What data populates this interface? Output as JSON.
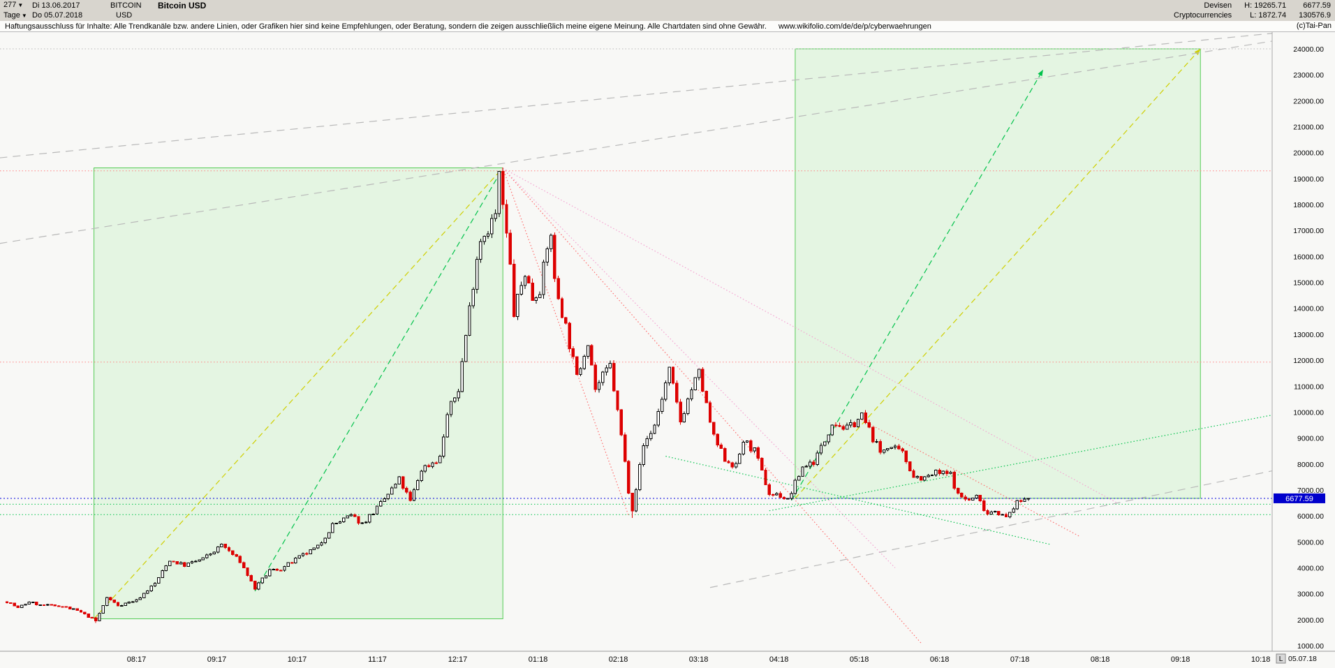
{
  "header": {
    "bars_count": "277",
    "period": "Tage",
    "date_from": "Di 13.06.2017",
    "date_to": "Do 05.07.2018",
    "symbol": "BITCOIN",
    "currency": "USD",
    "title": "Bitcoin USD",
    "category_line1": "Devisen",
    "category_line2": "Cryptocurrencies",
    "high_label": "H: 19265.71",
    "low_label": "L: 1872.74",
    "last_price": "6677.59",
    "volume": "130576.9",
    "copyright": "(c)Tai-Pan"
  },
  "disclaimer": {
    "text": "Haftungsausschluss für Inhalte: Alle Trendkanäle bzw. andere Linien, oder Grafiken hier sind keine Empfehlungen, oder Beratung, sondern die zeigen ausschließlich meine eigene Meinung. Alle Chartdaten sind ohne Gewähr.",
    "link": "www.wikifolio.com/de/de/p/cyberwaehrungen"
  },
  "footer": {
    "last_marker": "L",
    "last_date": "05.07.18"
  },
  "colors": {
    "up": "#000000",
    "up_fill": "#ffffff",
    "down": "#dd0000",
    "box_fill": "rgba(150,235,150,0.20)",
    "box_border": "#55cc55",
    "yellow": "#cfcf00",
    "green": "#00c24a",
    "gray": "#b8b8b8",
    "magenta": "#f4a0d0",
    "fan_red": "#ff6a6a",
    "red_line": "#ff8080",
    "blue": "#0000dd",
    "chip_bg": "#0000cc",
    "chip_text": "#ffffff",
    "axis_text": "#000000"
  },
  "chart_data": {
    "type": "candlestick",
    "title": "Bitcoin USD",
    "timeframe": "daily (Tage)",
    "bars": 277,
    "first_bar_date": "13.06.2017",
    "last_bar_date": "05.07.2018",
    "high": 19265.71,
    "low": 1872.74,
    "last_close": 6677.59,
    "y_axis": {
      "min": 1000,
      "max": 24000,
      "step": 1000
    },
    "x_labels": [
      {
        "label": "08:17",
        "i": 35
      },
      {
        "label": "09:17",
        "i": 56.7
      },
      {
        "label": "10:17",
        "i": 78.4
      },
      {
        "label": "11:17",
        "i": 100.1
      },
      {
        "label": "12:17",
        "i": 121.8
      },
      {
        "label": "01:18",
        "i": 143.5
      },
      {
        "label": "02:18",
        "i": 165.2
      },
      {
        "label": "03:18",
        "i": 186.9
      },
      {
        "label": "04:18",
        "i": 208.6
      },
      {
        "label": "05:18",
        "i": 230.3
      },
      {
        "label": "06:18",
        "i": 252
      },
      {
        "label": "07:18",
        "i": 273.7
      },
      {
        "label": "08:18",
        "i": 295.4
      },
      {
        "label": "09:18",
        "i": 317.1
      },
      {
        "label": "10:18",
        "i": 338.8
      }
    ],
    "anchors": [
      [
        0,
        2700
      ],
      [
        3,
        2450
      ],
      [
        6,
        2700
      ],
      [
        9,
        2550
      ],
      [
        14,
        2550
      ],
      [
        19,
        2350
      ],
      [
        23,
        2050
      ],
      [
        24,
        1950
      ],
      [
        27,
        2850
      ],
      [
        30,
        2550
      ],
      [
        35,
        2750
      ],
      [
        40,
        3400
      ],
      [
        44,
        4300
      ],
      [
        48,
        4100
      ],
      [
        53,
        4350
      ],
      [
        57,
        4750
      ],
      [
        58,
        4900
      ],
      [
        63,
        4250
      ],
      [
        67,
        3200
      ],
      [
        71,
        3900
      ],
      [
        74,
        3950
      ],
      [
        79,
        4400
      ],
      [
        84,
        4800
      ],
      [
        88,
        5650
      ],
      [
        93,
        6000
      ],
      [
        96,
        5700
      ],
      [
        101,
        6450
      ],
      [
        106,
        7400
      ],
      [
        109,
        6550
      ],
      [
        112,
        7800
      ],
      [
        117,
        8250
      ],
      [
        119,
        9900
      ],
      [
        122,
        10900
      ],
      [
        125,
        14000
      ],
      [
        127,
        16000
      ],
      [
        128,
        16700
      ],
      [
        130,
        17100
      ],
      [
        132,
        17600
      ],
      [
        133,
        19100
      ],
      [
        136,
        15600
      ],
      [
        137,
        13800
      ],
      [
        140,
        15400
      ],
      [
        142,
        14400
      ],
      [
        144,
        14800
      ],
      [
        147,
        16950
      ],
      [
        148,
        15000
      ],
      [
        151,
        13300
      ],
      [
        154,
        11300
      ],
      [
        157,
        12800
      ],
      [
        159,
        10900
      ],
      [
        163,
        11800
      ],
      [
        166,
        9100
      ],
      [
        168,
        7000
      ],
      [
        169,
        6300
      ],
      [
        172,
        8700
      ],
      [
        175,
        9500
      ],
      [
        179,
        11600
      ],
      [
        182,
        9650
      ],
      [
        185,
        10900
      ],
      [
        187,
        11500
      ],
      [
        191,
        9000
      ],
      [
        194,
        8200
      ],
      [
        197,
        7900
      ],
      [
        199,
        8900
      ],
      [
        202,
        8500
      ],
      [
        206,
        6850
      ],
      [
        209,
        6800
      ],
      [
        211,
        6600
      ],
      [
        215,
        7900
      ],
      [
        218,
        8100
      ],
      [
        221,
        8900
      ],
      [
        223,
        9650
      ],
      [
        227,
        9350
      ],
      [
        231,
        9850
      ],
      [
        236,
        8450
      ],
      [
        238,
        8700
      ],
      [
        242,
        8400
      ],
      [
        245,
        7550
      ],
      [
        248,
        7450
      ],
      [
        251,
        7650
      ],
      [
        255,
        7600
      ],
      [
        257,
        6800
      ],
      [
        260,
        6600
      ],
      [
        262,
        6750
      ],
      [
        265,
        6100
      ],
      [
        267,
        6250
      ],
      [
        270,
        5900
      ],
      [
        272,
        6350
      ],
      [
        274,
        6600
      ],
      [
        276,
        6677.59
      ]
    ],
    "noise": {
      "seed": 7,
      "close_amp": 0.018,
      "wick_amp": 0.012
    },
    "pins": [
      {
        "i": 24,
        "low": 1872.74
      },
      {
        "i": 133,
        "high": 19265.71
      },
      {
        "i": 169,
        "low": 5920
      },
      {
        "i": 231,
        "high": 9990
      },
      {
        "i": 276,
        "close": 6677.59
      }
    ],
    "boxes": [
      {
        "i1": 23.5,
        "p1": 2035,
        "i2": 134,
        "p2": 19413
      },
      {
        "i1": 213,
        "p1": 6677.59,
        "i2": 322.5,
        "p2": 24000
      }
    ],
    "trend_lines": [
      {
        "i1": 23.5,
        "p1": 2035,
        "i2": 134,
        "p2": 19413,
        "color": "yellow",
        "dash": "8,5"
      },
      {
        "i1": 67,
        "p1": 3100,
        "i2": 134,
        "p2": 19400,
        "color": "green",
        "dash": "8,5"
      },
      {
        "i1": 213,
        "p1": 6677.59,
        "i2": 322.5,
        "p2": 24000,
        "color": "yellow",
        "dash": "8,5",
        "arrow": true
      },
      {
        "i1": 212,
        "p1": 6600,
        "i2": 280,
        "p2": 23200,
        "color": "green",
        "dash": "8,5",
        "arrow": true
      },
      {
        "i1": -2,
        "p1": 19800,
        "i2": 342,
        "p2": 24600,
        "color": "gray",
        "dash": "11,8"
      },
      {
        "i1": -2,
        "p1": 16500,
        "i2": 342,
        "p2": 24300,
        "color": "gray",
        "dash": "11,8"
      },
      {
        "i1": 190,
        "p1": 3240,
        "i2": 342,
        "p2": 7740,
        "color": "gray",
        "dash": "11,8"
      },
      {
        "i1": 134,
        "p1": 19400,
        "i2": 168,
        "p2": 6000,
        "color": "fan_red",
        "dash": "1.5,3"
      },
      {
        "i1": 134,
        "p1": 19400,
        "i2": 247,
        "p2": 1100,
        "color": "fan_red",
        "dash": "1.5,3"
      },
      {
        "i1": 134,
        "p1": 19400,
        "i2": 240,
        "p2": 4000,
        "color": "magenta",
        "dash": "1.5,3"
      },
      {
        "i1": 134,
        "p1": 19400,
        "i2": 300,
        "p2": 6500,
        "color": "magenta",
        "dash": "1.5,3"
      },
      {
        "i1": 231,
        "p1": 9700,
        "i2": 290,
        "p2": 5200,
        "color": "fan_red",
        "dash": "1.5,3"
      },
      {
        "i1": 178,
        "p1": 8300,
        "i2": 282,
        "p2": 4900,
        "color": "green",
        "dash": "1.5,3"
      },
      {
        "i1": 206,
        "p1": 6200,
        "i2": 342,
        "p2": 9890,
        "color": "green",
        "dash": "1.5,3"
      }
    ],
    "h_levels": [
      {
        "p": 24000,
        "color": "gray",
        "dash": "1.5,3"
      },
      {
        "p": 19300,
        "color": "red_line",
        "dash": "1.5,3"
      },
      {
        "p": 11930,
        "color": "red_line",
        "dash": "1.5,3"
      },
      {
        "p": 6450,
        "color": "green",
        "dash": "1.5,3"
      },
      {
        "p": 6050,
        "color": "green",
        "dash": "1.5,3"
      }
    ],
    "price_marker": {
      "price": 6677.59,
      "label": "6677.59"
    }
  }
}
